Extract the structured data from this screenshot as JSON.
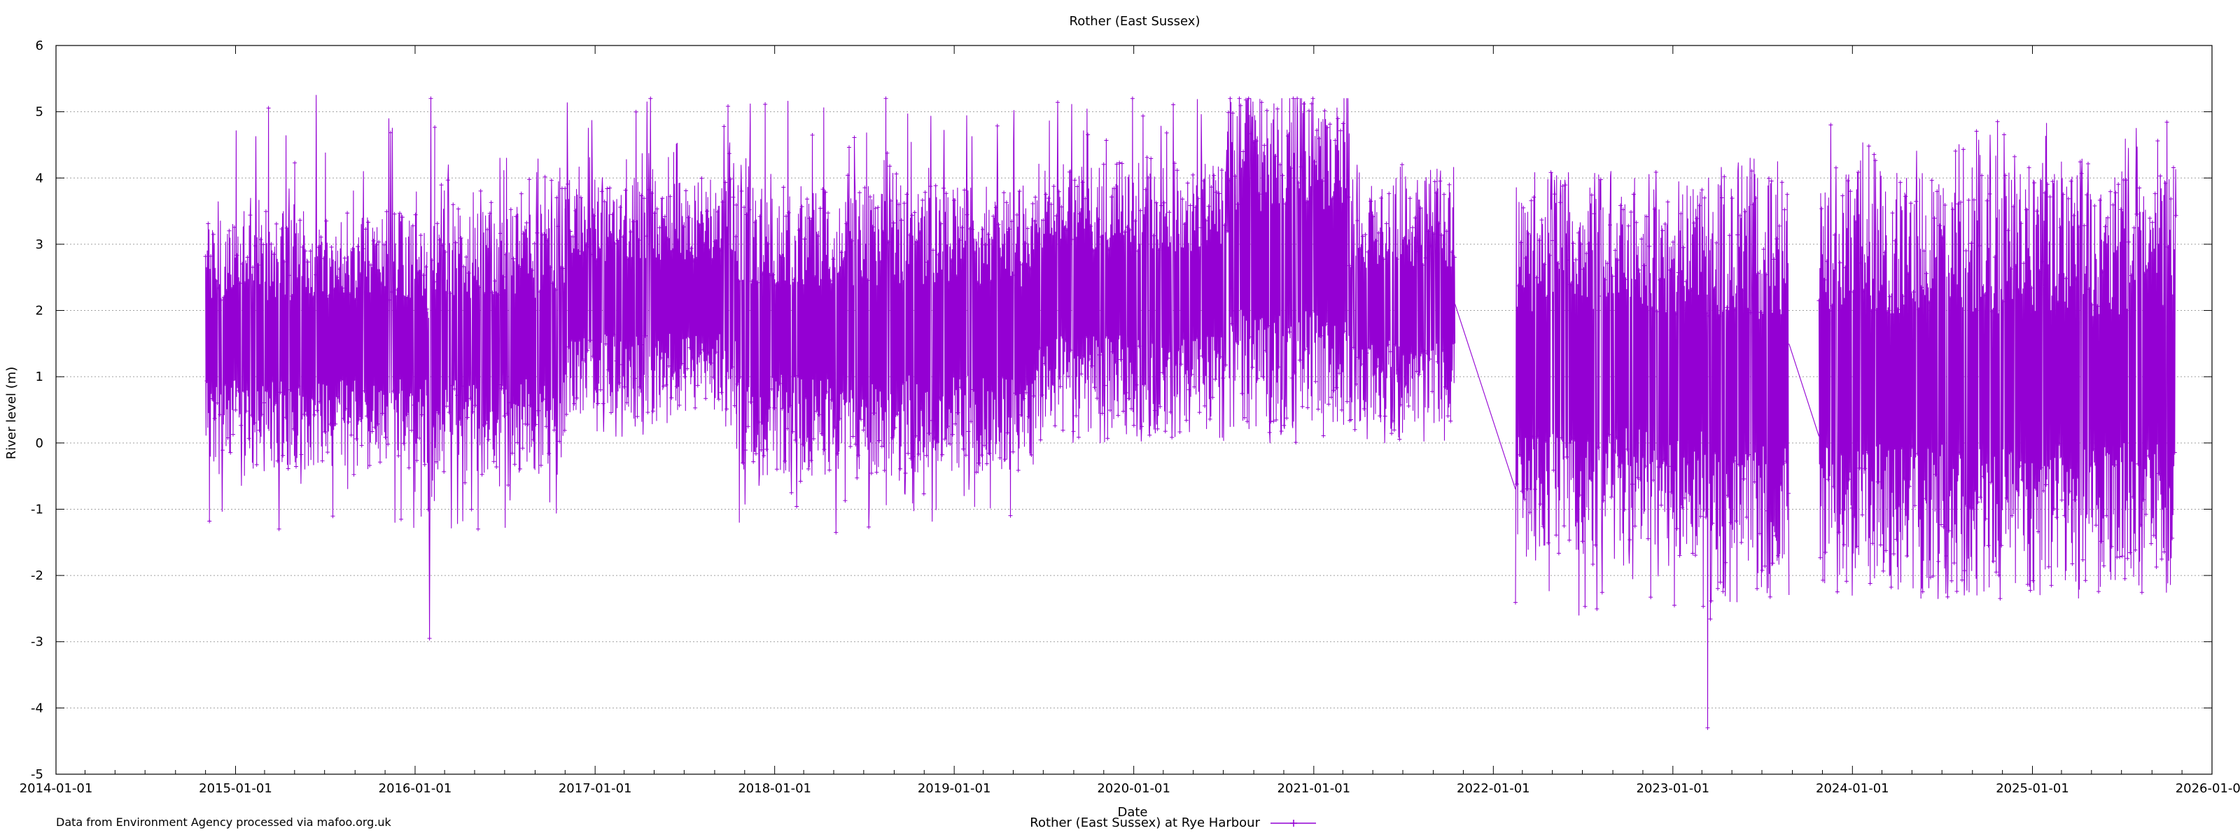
{
  "chart_data": {
    "type": "line",
    "title": "Rother (East Sussex)",
    "xlabel": "Date",
    "ylabel": "River level (m)",
    "ylim": [
      -5,
      6
    ],
    "yticks": [
      -5,
      -4,
      -3,
      -2,
      -1,
      0,
      1,
      2,
      3,
      4,
      5,
      6
    ],
    "xlim": [
      "2014-01-01",
      "2026-01-01"
    ],
    "xticks": [
      "2014-01-01",
      "2015-01-01",
      "2016-01-01",
      "2017-01-01",
      "2018-01-01",
      "2019-01-01",
      "2020-01-01",
      "2021-01-01",
      "2022-01-01",
      "2023-01-01",
      "2024-01-01",
      "2025-01-01",
      "2026-01-01"
    ],
    "grid": true,
    "legend_position": "bottom-center",
    "series_color": "#9400d3",
    "series": [
      {
        "name": "Rother (East Sussex) at Rye Harbour",
        "segments": [
          {
            "start": "2014-11-01",
            "end": "2016-01-25",
            "min": -1.3,
            "max": 5.25,
            "typical_low": -0.4,
            "typical_high": 3.5
          },
          {
            "start": "2016-01-25",
            "end": "2016-02-10",
            "min": -2.95,
            "max": 5.2,
            "typical_low": -1.3,
            "typical_high": 3.5
          },
          {
            "start": "2016-02-10",
            "end": "2016-11-01",
            "min": -1.3,
            "max": 4.3,
            "typical_low": -0.45,
            "typical_high": 3.6
          },
          {
            "start": "2016-11-01",
            "end": "2017-10-15",
            "min": 0.1,
            "max": 5.2,
            "typical_low": 0.4,
            "typical_high": 4.0
          },
          {
            "start": "2017-10-15",
            "end": "2019-06-15",
            "min": -1.35,
            "max": 5.2,
            "typical_low": -0.5,
            "typical_high": 3.9
          },
          {
            "start": "2019-06-15",
            "end": "2020-07-15",
            "min": 0.0,
            "max": 5.2,
            "typical_low": 0.2,
            "typical_high": 4.3
          },
          {
            "start": "2020-07-15",
            "end": "2021-03-15",
            "min": 0.0,
            "max": 5.2,
            "typical_low": 0.3,
            "typical_high": 5.2
          },
          {
            "start": "2021-03-15",
            "end": "2021-10-15",
            "min": 0.0,
            "max": 4.2,
            "typical_low": 0.3,
            "typical_high": 3.9
          },
          {
            "start": "2022-02-15",
            "end": "2023-03-10",
            "min": -2.6,
            "max": 4.1,
            "typical_low": -1.7,
            "typical_high": 3.9
          },
          {
            "start": "2023-03-10",
            "end": "2023-03-20",
            "min": -4.3,
            "max": 4.0,
            "typical_low": -1.8,
            "typical_high": 3.9
          },
          {
            "start": "2023-03-20",
            "end": "2023-08-25",
            "min": -2.4,
            "max": 4.3,
            "typical_low": -2.2,
            "typical_high": 4.0
          },
          {
            "start": "2023-10-25",
            "end": "2025-10-20",
            "min": -2.35,
            "max": 4.85,
            "typical_low": -2.2,
            "typical_high": 4.1
          }
        ],
        "connectors": [
          {
            "from": [
              "2021-10-15",
              2.1
            ],
            "to": [
              "2022-02-15",
              -0.7
            ]
          },
          {
            "from": [
              "2023-08-25",
              1.5
            ],
            "to": [
              "2023-10-25",
              0.1
            ]
          }
        ]
      }
    ]
  },
  "footer": {
    "source_note": "Data from Environment Agency processed via mafoo.org.uk"
  }
}
